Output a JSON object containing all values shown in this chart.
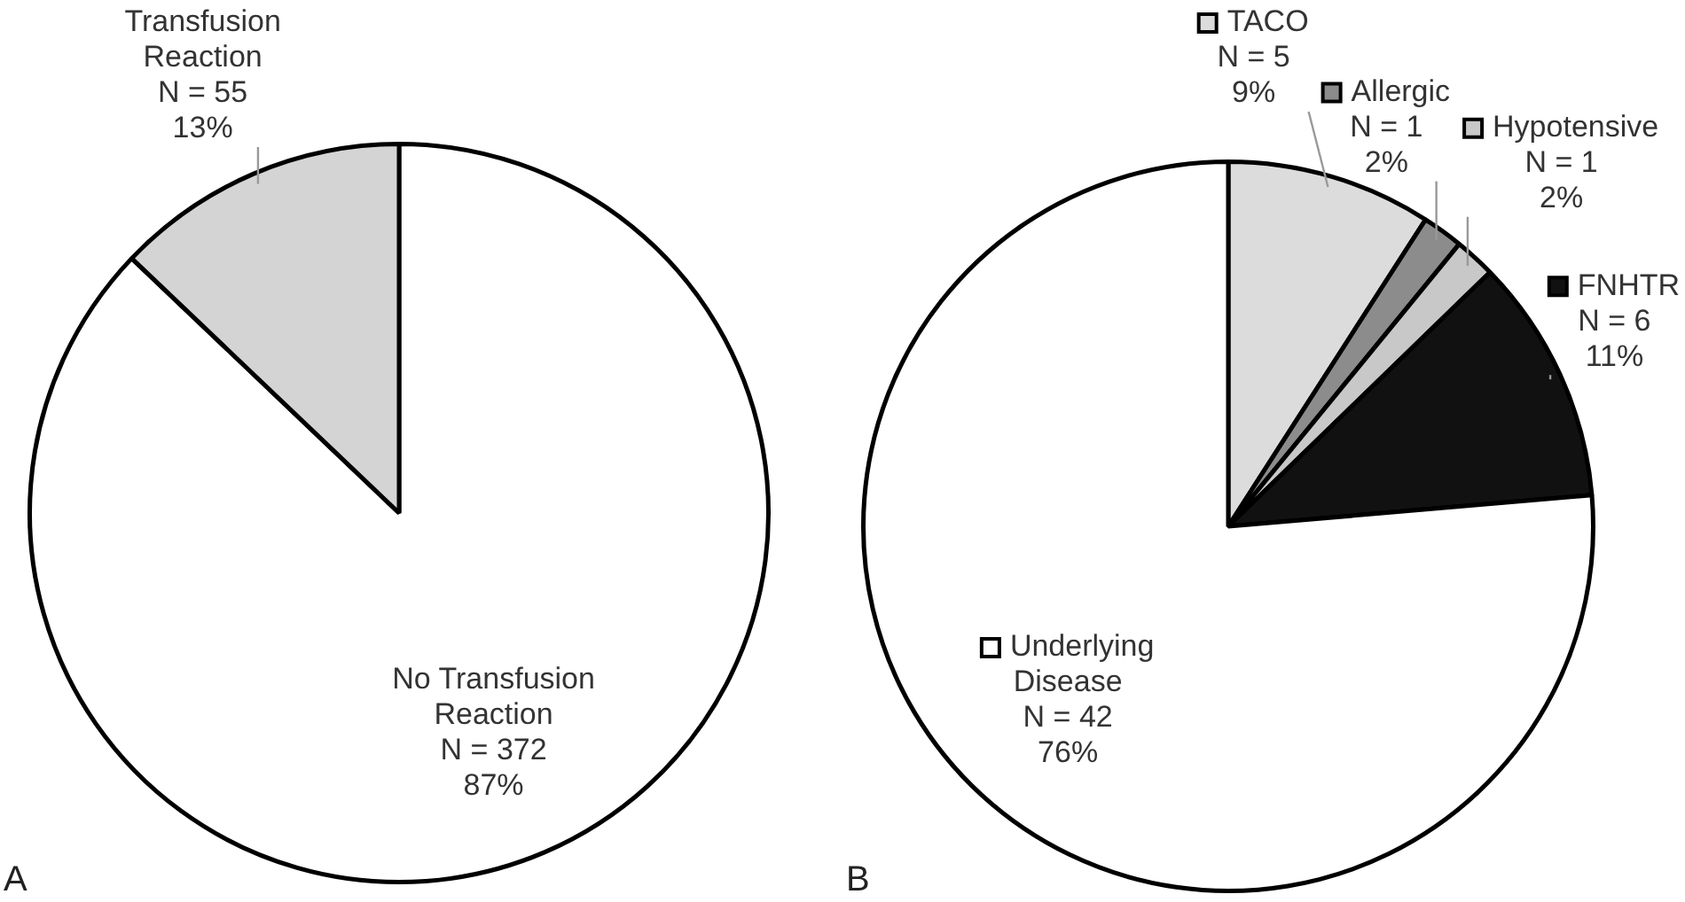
{
  "chart_data": [
    {
      "type": "pie",
      "categories": [
        "No Transfusion Reaction",
        "Transfusion Reaction"
      ],
      "values": [
        372,
        55
      ],
      "value_labels": [
        "N = 372\n87%",
        "N = 55\n13%"
      ],
      "colors": [
        "#ffffff",
        "#d4d4d4"
      ],
      "legend": false,
      "annotations": [
        "A"
      ]
    },
    {
      "type": "pie",
      "categories": [
        "TACO",
        "Allergic",
        "Hypotensive",
        "FNHTR",
        "Underlying Disease"
      ],
      "values": [
        5,
        1,
        1,
        6,
        42
      ],
      "value_labels": [
        "N = 5\n9%",
        "N = 1\n2%",
        "N = 1\n2%",
        "N = 6\n11%",
        "N = 42\n76%"
      ],
      "colors": [
        "#dcdcdc",
        "#8c8c8c",
        "#c8c8c8",
        "#111111",
        "#ffffff"
      ],
      "legend": "top right",
      "annotations": [
        "B"
      ]
    }
  ]
}
